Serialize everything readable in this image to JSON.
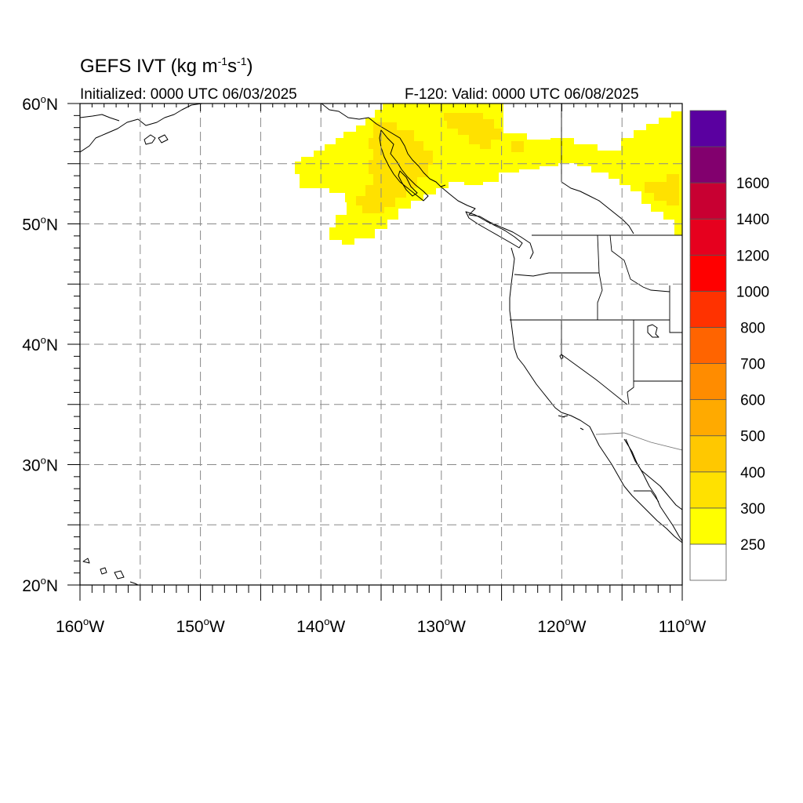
{
  "title": {
    "prefix": "GEFS IVT (kg m",
    "exp1": "-1",
    "mid": "s",
    "exp2": "-1",
    "suffix": ")"
  },
  "subtitle_left": "Initialized: 0000 UTC 06/03/2025",
  "subtitle_right": "F-120: Valid: 0000 UTC 06/08/2025",
  "map": {
    "lon_range": [
      -160,
      -110
    ],
    "lat_range": [
      20,
      60
    ],
    "lat_labels": [
      {
        "lat": 60,
        "deg": "60",
        "hemi": "N"
      },
      {
        "lat": 50,
        "deg": "50",
        "hemi": "N"
      },
      {
        "lat": 40,
        "deg": "40",
        "hemi": "N"
      },
      {
        "lat": 30,
        "deg": "30",
        "hemi": "N"
      },
      {
        "lat": 20,
        "deg": "20",
        "hemi": "N"
      }
    ],
    "lon_labels": [
      {
        "lon": -160,
        "deg": "160",
        "hemi": "W"
      },
      {
        "lon": -150,
        "deg": "150",
        "hemi": "W"
      },
      {
        "lon": -140,
        "deg": "140",
        "hemi": "W"
      },
      {
        "lon": -130,
        "deg": "130",
        "hemi": "W"
      },
      {
        "lon": -120,
        "deg": "120",
        "hemi": "W"
      },
      {
        "lon": -110,
        "deg": "110",
        "hemi": "W"
      }
    ],
    "grid_lats": [
      25,
      30,
      35,
      40,
      45,
      50,
      55
    ],
    "grid_lons": [
      -155,
      -150,
      -145,
      -140,
      -135,
      -130,
      -125,
      -120,
      -115
    ]
  },
  "colorbar": {
    "colors": [
      "#ffffff",
      "#ffff00",
      "#ffe100",
      "#ffc800",
      "#ffaa00",
      "#ff8c00",
      "#ff6400",
      "#ff3200",
      "#ff0000",
      "#e6001e",
      "#c80032",
      "#82006e",
      "#5a00a0"
    ],
    "labels": [
      "250",
      "300",
      "400",
      "500",
      "600",
      "700",
      "800",
      "1000",
      "1200",
      "1400",
      "1600"
    ]
  },
  "ivt_regions": [
    {
      "level": "250",
      "color": "#ffff00"
    },
    {
      "level": "300",
      "color": "#ffe100"
    }
  ]
}
